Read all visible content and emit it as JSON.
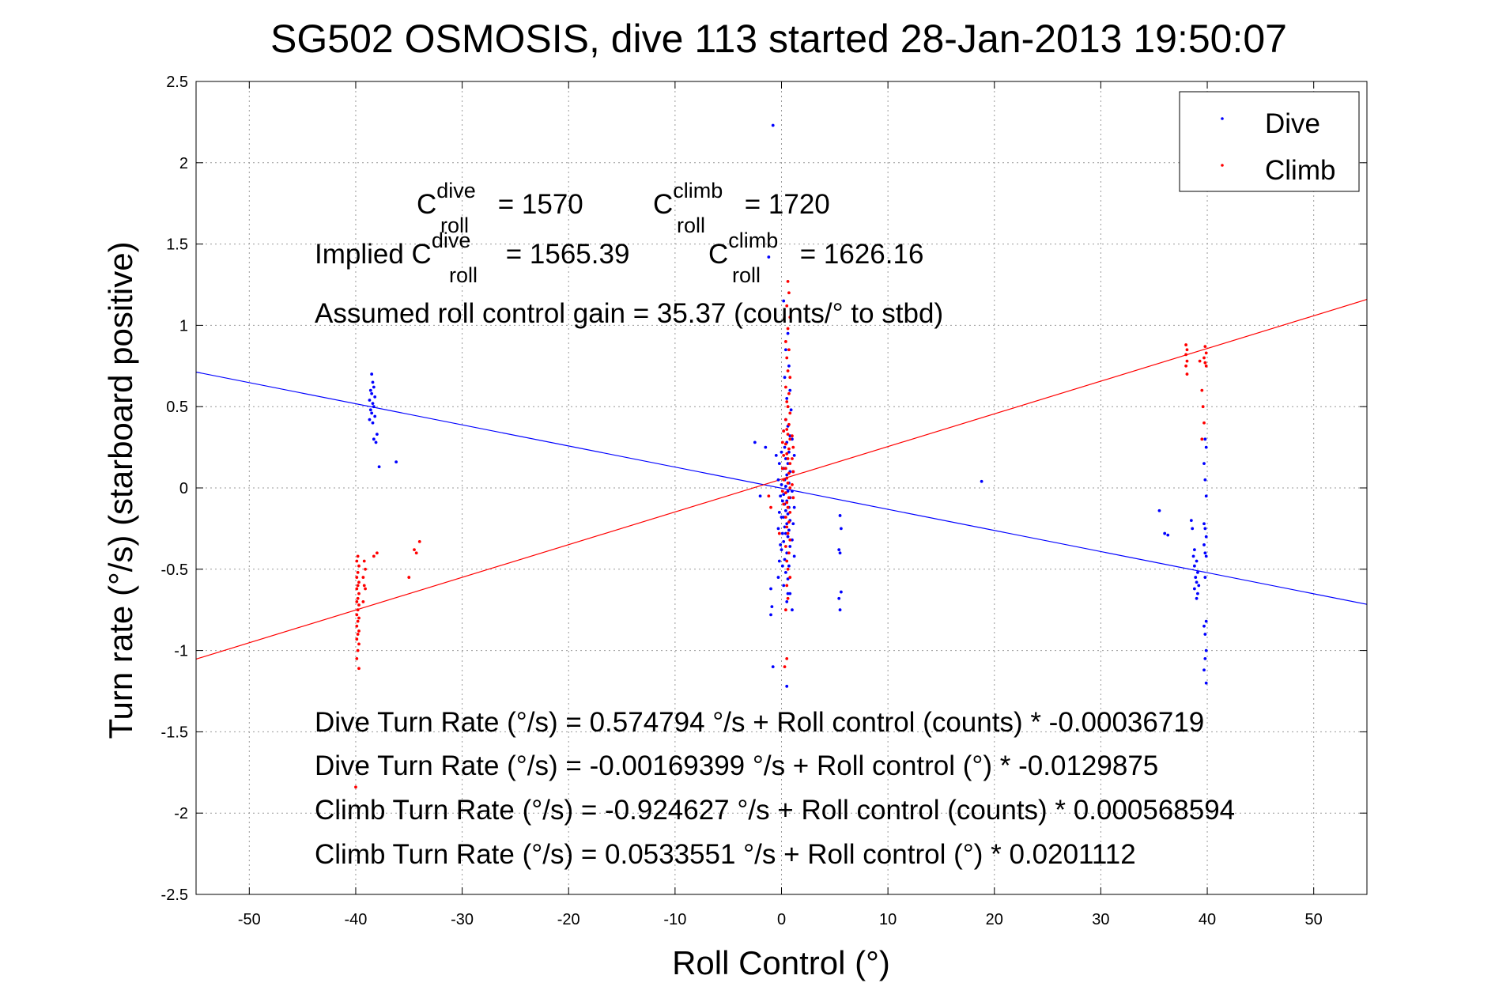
{
  "chart_data": {
    "type": "scatter",
    "title": "SG502 OSMOSIS, dive 113 started 28-Jan-2013 19:50:07",
    "xlabel": "Roll Control (°)",
    "ylabel": "Turn rate (°/s)  (starboard positive)",
    "xlim": [
      -55,
      55
    ],
    "ylim": [
      -2.5,
      2.5
    ],
    "xticks": [
      -50,
      -40,
      -30,
      -20,
      -10,
      0,
      10,
      20,
      30,
      40,
      50
    ],
    "yticks": [
      -2.5,
      -2,
      -1.5,
      -1,
      -0.5,
      0,
      0.5,
      1,
      1.5,
      2,
      2.5
    ],
    "xtick_labels": [
      "-50",
      "-40",
      "-30",
      "-20",
      "-10",
      "0",
      "10",
      "20",
      "30",
      "40",
      "50"
    ],
    "ytick_labels": [
      "-2.5",
      "-2",
      "-1.5",
      "-1",
      "-0.5",
      "0",
      "0.5",
      "1",
      "1.5",
      "2",
      "2.5"
    ],
    "grid": true,
    "legend_position": "top-right",
    "legend": [
      "Dive",
      "Climb"
    ],
    "series": [
      {
        "name": "Dive",
        "color": "#0000ff",
        "points": [
          [
            -38.5,
            0.7
          ],
          [
            -38.4,
            0.65
          ],
          [
            -38.3,
            0.62
          ],
          [
            -38.6,
            0.6
          ],
          [
            -38.5,
            0.58
          ],
          [
            -38.2,
            0.56
          ],
          [
            -38.7,
            0.54
          ],
          [
            -38.4,
            0.52
          ],
          [
            -38.3,
            0.5
          ],
          [
            -38.6,
            0.48
          ],
          [
            -38.5,
            0.46
          ],
          [
            -38.2,
            0.44
          ],
          [
            -38.7,
            0.42
          ],
          [
            -38.4,
            0.4
          ],
          [
            -38.0,
            0.33
          ],
          [
            -38.3,
            0.3
          ],
          [
            -38.1,
            0.28
          ],
          [
            -37.8,
            0.13
          ],
          [
            -36.2,
            0.16
          ],
          [
            -0.8,
            2.23
          ],
          [
            -1.2,
            1.42
          ],
          [
            -2.5,
            0.28
          ],
          [
            -1.5,
            0.25
          ],
          [
            -0.5,
            0.2
          ],
          [
            -2.0,
            -0.05
          ],
          [
            -1.0,
            -0.62
          ],
          [
            -0.9,
            -0.73
          ],
          [
            -1.0,
            -0.78
          ],
          [
            -0.8,
            -1.1
          ],
          [
            0.5,
            -1.22
          ],
          [
            1.0,
            -0.75
          ],
          [
            0.6,
            -0.65
          ],
          [
            5.5,
            -0.17
          ],
          [
            5.6,
            -0.25
          ],
          [
            5.4,
            -0.38
          ],
          [
            5.5,
            -0.4
          ],
          [
            5.6,
            -0.64
          ],
          [
            5.4,
            -0.68
          ],
          [
            5.5,
            -0.75
          ],
          [
            18.8,
            0.04
          ],
          [
            35.5,
            -0.14
          ],
          [
            36.0,
            -0.28
          ],
          [
            36.3,
            -0.29
          ],
          [
            38.5,
            -0.2
          ],
          [
            38.6,
            -0.25
          ],
          [
            38.8,
            -0.38
          ],
          [
            38.7,
            -0.42
          ],
          [
            39.0,
            -0.45
          ],
          [
            38.8,
            -0.48
          ],
          [
            39.1,
            -0.52
          ],
          [
            38.9,
            -0.55
          ],
          [
            39.0,
            -0.58
          ],
          [
            39.2,
            -0.6
          ],
          [
            38.8,
            -0.62
          ],
          [
            39.1,
            -0.65
          ],
          [
            39.0,
            -0.68
          ],
          [
            39.8,
            0.3
          ],
          [
            39.9,
            0.25
          ],
          [
            39.7,
            0.15
          ],
          [
            39.8,
            0.05
          ],
          [
            39.9,
            -0.05
          ],
          [
            39.7,
            -0.22
          ],
          [
            39.8,
            -0.25
          ],
          [
            39.9,
            -0.3
          ],
          [
            39.7,
            -0.35
          ],
          [
            39.8,
            -0.4
          ],
          [
            39.9,
            -0.42
          ],
          [
            39.8,
            -0.55
          ],
          [
            39.9,
            -0.82
          ],
          [
            39.7,
            -0.85
          ],
          [
            39.8,
            -0.9
          ],
          [
            39.9,
            -1.0
          ],
          [
            39.8,
            -1.05
          ],
          [
            39.7,
            -1.12
          ],
          [
            39.9,
            -1.2
          ],
          [
            0.2,
            1.15
          ],
          [
            0.6,
            0.95
          ],
          [
            0.4,
            0.85
          ],
          [
            0.7,
            0.75
          ],
          [
            0.3,
            0.68
          ],
          [
            0.8,
            0.6
          ],
          [
            0.5,
            0.55
          ],
          [
            0.9,
            0.48
          ],
          [
            0.4,
            0.42
          ],
          [
            0.6,
            0.38
          ],
          [
            0.2,
            0.35
          ],
          [
            0.8,
            0.32
          ],
          [
            0.5,
            0.28
          ],
          [
            0.3,
            0.25
          ],
          [
            0.7,
            0.22
          ],
          [
            0.4,
            0.18
          ],
          [
            0.6,
            0.15
          ],
          [
            0.2,
            0.12
          ],
          [
            0.8,
            0.1
          ],
          [
            0.5,
            0.08
          ],
          [
            0.3,
            0.05
          ],
          [
            0.7,
            0.03
          ],
          [
            0.4,
            0.01
          ],
          [
            0.6,
            -0.02
          ],
          [
            0.2,
            -0.04
          ],
          [
            0.8,
            -0.06
          ],
          [
            0.5,
            -0.08
          ],
          [
            0.3,
            -0.1
          ],
          [
            0.7,
            -0.12
          ],
          [
            0.4,
            -0.14
          ],
          [
            0.6,
            -0.16
          ],
          [
            0.2,
            -0.18
          ],
          [
            0.8,
            -0.2
          ],
          [
            0.5,
            -0.22
          ],
          [
            0.3,
            -0.24
          ],
          [
            0.7,
            -0.26
          ],
          [
            0.4,
            -0.28
          ],
          [
            0.6,
            -0.3
          ],
          [
            0.2,
            -0.33
          ],
          [
            0.8,
            -0.36
          ],
          [
            0.5,
            -0.4
          ],
          [
            0.3,
            -0.44
          ],
          [
            0.7,
            -0.48
          ],
          [
            0.4,
            -0.52
          ],
          [
            0.6,
            -0.56
          ],
          [
            0.2,
            -0.6
          ],
          [
            0.8,
            -0.65
          ],
          [
            0.5,
            -0.7
          ],
          [
            1.0,
            0.3
          ],
          [
            1.2,
            0.2
          ],
          [
            1.1,
            0.1
          ],
          [
            1.0,
            -0.02
          ],
          [
            1.2,
            -0.12
          ],
          [
            1.1,
            -0.22
          ],
          [
            1.0,
            -0.32
          ],
          [
            1.2,
            -0.42
          ],
          [
            -0.2,
            0.15
          ],
          [
            -0.3,
            0.05
          ],
          [
            -0.1,
            -0.05
          ],
          [
            -0.2,
            -0.15
          ],
          [
            -0.3,
            -0.25
          ],
          [
            -0.1,
            -0.35
          ],
          [
            -0.2,
            -0.45
          ],
          [
            -0.3,
            -0.55
          ],
          [
            0.0,
            0.22
          ],
          [
            0.1,
            0.12
          ],
          [
            0.0,
            0.02
          ],
          [
            0.1,
            -0.08
          ],
          [
            0.0,
            -0.18
          ],
          [
            0.1,
            -0.28
          ],
          [
            0.0,
            -0.38
          ],
          [
            0.1,
            -0.48
          ]
        ]
      },
      {
        "name": "Climb",
        "color": "#ff0000",
        "points": [
          [
            -39.8,
            -0.42
          ],
          [
            -39.9,
            -0.45
          ],
          [
            -39.7,
            -0.48
          ],
          [
            -39.8,
            -0.52
          ],
          [
            -39.9,
            -0.55
          ],
          [
            -39.7,
            -0.58
          ],
          [
            -39.8,
            -0.6
          ],
          [
            -39.9,
            -0.62
          ],
          [
            -39.7,
            -0.65
          ],
          [
            -39.8,
            -0.68
          ],
          [
            -39.9,
            -0.7
          ],
          [
            -39.7,
            -0.72
          ],
          [
            -39.8,
            -0.75
          ],
          [
            -39.9,
            -0.78
          ],
          [
            -39.7,
            -0.8
          ],
          [
            -39.8,
            -0.82
          ],
          [
            -39.9,
            -0.85
          ],
          [
            -39.7,
            -0.88
          ],
          [
            -39.8,
            -0.9
          ],
          [
            -39.9,
            -0.93
          ],
          [
            -39.7,
            -0.96
          ],
          [
            -39.8,
            -1.0
          ],
          [
            -39.9,
            -1.05
          ],
          [
            -39.7,
            -1.11
          ],
          [
            -39.2,
            -0.45
          ],
          [
            -39.1,
            -0.5
          ],
          [
            -39.3,
            -0.55
          ],
          [
            -39.2,
            -0.6
          ],
          [
            -39.1,
            -0.62
          ],
          [
            -39.3,
            -0.7
          ],
          [
            -38.3,
            -0.42
          ],
          [
            -38.0,
            -0.4
          ],
          [
            -35.0,
            -0.55
          ],
          [
            -34.5,
            -0.38
          ],
          [
            -34.0,
            -0.33
          ],
          [
            -34.3,
            -0.4
          ],
          [
            -40.0,
            -1.84
          ],
          [
            0.6,
            1.27
          ],
          [
            0.7,
            1.2
          ],
          [
            0.5,
            1.12
          ],
          [
            0.8,
            1.05
          ],
          [
            0.6,
            0.98
          ],
          [
            0.4,
            0.9
          ],
          [
            0.7,
            0.85
          ],
          [
            0.5,
            0.8
          ],
          [
            0.6,
            0.72
          ],
          [
            0.8,
            0.68
          ],
          [
            0.4,
            0.62
          ],
          [
            0.7,
            0.58
          ],
          [
            0.5,
            0.53
          ],
          [
            0.6,
            0.5
          ],
          [
            0.8,
            0.46
          ],
          [
            0.4,
            0.42
          ],
          [
            0.7,
            0.39
          ],
          [
            0.5,
            0.36
          ],
          [
            0.6,
            0.33
          ],
          [
            0.8,
            0.3
          ],
          [
            0.4,
            0.27
          ],
          [
            0.7,
            0.24
          ],
          [
            0.5,
            0.21
          ],
          [
            0.6,
            0.18
          ],
          [
            0.8,
            0.15
          ],
          [
            0.4,
            0.12
          ],
          [
            0.7,
            0.09
          ],
          [
            0.5,
            0.06
          ],
          [
            0.6,
            0.03
          ],
          [
            0.8,
            0.0
          ],
          [
            0.4,
            -0.03
          ],
          [
            0.7,
            -0.06
          ],
          [
            0.5,
            -0.09
          ],
          [
            0.6,
            -0.12
          ],
          [
            0.8,
            -0.15
          ],
          [
            0.4,
            -0.18
          ],
          [
            0.7,
            -0.21
          ],
          [
            0.5,
            -0.24
          ],
          [
            0.6,
            -0.28
          ],
          [
            0.8,
            -0.32
          ],
          [
            0.4,
            -0.36
          ],
          [
            0.7,
            -0.4
          ],
          [
            0.5,
            -0.45
          ],
          [
            0.6,
            -0.5
          ],
          [
            0.8,
            -0.55
          ],
          [
            0.5,
            -0.6
          ],
          [
            0.6,
            -0.68
          ],
          [
            0.4,
            -0.75
          ],
          [
            0.5,
            -1.05
          ],
          [
            0.3,
            -1.1
          ],
          [
            0.2,
            0.35
          ],
          [
            0.1,
            0.28
          ],
          [
            0.2,
            0.2
          ],
          [
            0.1,
            0.12
          ],
          [
            0.2,
            0.05
          ],
          [
            0.1,
            -0.02
          ],
          [
            0.2,
            -0.1
          ],
          [
            1.0,
            0.32
          ],
          [
            1.1,
            0.25
          ],
          [
            1.0,
            0.18
          ],
          [
            1.1,
            0.1
          ],
          [
            1.0,
            0.02
          ],
          [
            1.1,
            -0.06
          ],
          [
            -1.2,
            -0.05
          ],
          [
            -1.0,
            -0.12
          ],
          [
            -0.2,
            -0.28
          ],
          [
            38.0,
            0.88
          ],
          [
            38.1,
            0.85
          ],
          [
            38.0,
            0.82
          ],
          [
            38.1,
            0.78
          ],
          [
            38.0,
            0.75
          ],
          [
            38.1,
            0.7
          ],
          [
            39.8,
            0.87
          ],
          [
            39.9,
            0.83
          ],
          [
            39.7,
            0.8
          ],
          [
            39.8,
            0.77
          ],
          [
            39.9,
            0.75
          ],
          [
            39.5,
            0.6
          ],
          [
            39.6,
            0.5
          ],
          [
            39.7,
            0.4
          ],
          [
            39.5,
            0.3
          ],
          [
            39.3,
            0.78
          ]
        ]
      }
    ],
    "fit_lines": [
      {
        "series": "Dive",
        "color": "#0000ff",
        "intercept": -0.00169399,
        "slope": -0.0129875
      },
      {
        "series": "Climb",
        "color": "#ff0000",
        "intercept": 0.0533551,
        "slope": 0.0201112
      }
    ],
    "annotations": {
      "c_dive_prefix": "C",
      "c_dive_sup": "dive",
      "c_dive_sub": "roll",
      "c_dive_value": " = 1570",
      "c_climb_prefix": "C",
      "c_climb_sup": "climb",
      "c_climb_sub": "roll",
      "c_climb_value": " = 1720",
      "implied_prefix": "Implied C",
      "implied_dive_sup": "dive",
      "implied_dive_sub": "roll",
      "implied_dive_value": " = 1565.39",
      "implied_climb_prefix": "C",
      "implied_climb_sup": "climb",
      "implied_climb_sub": "roll",
      "implied_climb_value": " = 1626.16",
      "gain": "Assumed roll control gain = 35.37 (counts/° to stbd)",
      "eq1": "Dive Turn Rate (°/s) = 0.574794 °/s + Roll control (counts) * -0.00036719",
      "eq2": "Dive Turn Rate (°/s) = -0.00169399 °/s + Roll control (°) * -0.0129875",
      "eq3": "Climb Turn Rate (°/s) = -0.924627 °/s + Roll control (counts) * 0.000568594",
      "eq4": "Climb Turn Rate (°/s) = 0.0533551 °/s + Roll control (°) * 0.0201112"
    }
  }
}
